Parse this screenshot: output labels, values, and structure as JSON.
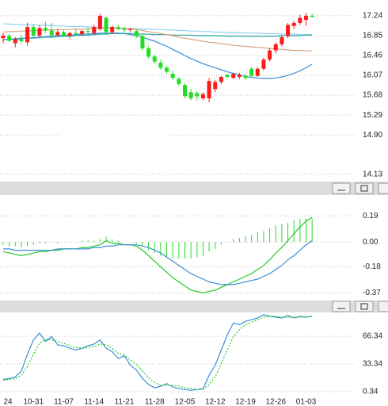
{
  "chart_data": [
    {
      "type": "candlestick",
      "open": [
        16.8,
        16.85,
        16.7,
        16.78,
        16.72,
        17.02,
        16.85,
        17.0,
        16.95,
        16.86,
        16.92,
        16.85,
        16.9,
        16.88,
        16.94,
        16.9,
        16.98,
        17.2,
        16.92,
        17.02,
        16.98,
        16.96,
        16.94,
        16.84,
        16.6,
        16.44,
        16.32,
        16.22,
        16.1,
        16.0,
        15.88,
        15.74,
        15.72,
        15.62,
        15.62,
        15.8,
        15.94,
        16.08,
        16.02,
        16.04,
        16.06,
        16.2,
        16.06,
        16.2,
        16.38,
        16.56,
        16.68,
        16.84,
        17.04,
        17.1,
        17.16,
        17.24
      ],
      "high": [
        16.9,
        16.88,
        16.82,
        16.86,
        17.1,
        17.08,
        17.05,
        17.12,
        17.1,
        16.98,
        16.96,
        16.93,
        16.98,
        16.96,
        17.0,
        17.06,
        17.28,
        17.22,
        17.05,
        17.06,
        17.02,
        17.0,
        16.98,
        16.88,
        16.64,
        16.48,
        16.38,
        16.26,
        16.16,
        16.04,
        15.92,
        15.8,
        15.76,
        15.74,
        16.02,
        15.98,
        16.06,
        16.1,
        16.12,
        16.12,
        16.1,
        16.24,
        16.24,
        16.42,
        16.6,
        16.72,
        16.86,
        17.1,
        17.14,
        17.26,
        17.3,
        17.28
      ],
      "low": [
        16.7,
        16.72,
        16.62,
        16.7,
        16.65,
        16.8,
        16.82,
        16.9,
        16.8,
        16.84,
        16.82,
        16.8,
        16.86,
        16.84,
        16.88,
        16.86,
        16.95,
        16.88,
        16.88,
        16.96,
        16.9,
        16.92,
        16.8,
        16.56,
        16.4,
        16.3,
        16.18,
        16.1,
        15.98,
        15.86,
        15.62,
        15.58,
        15.58,
        15.58,
        15.54,
        15.74,
        15.9,
        16.0,
        16.0,
        16.0,
        15.98,
        16.02,
        16.04,
        16.16,
        16.34,
        16.5,
        16.64,
        16.8,
        16.98,
        17.06,
        17.04,
        17.2
      ],
      "close": [
        16.85,
        16.75,
        16.78,
        16.74,
        17.02,
        16.85,
        17.0,
        16.95,
        16.86,
        16.92,
        16.85,
        16.9,
        16.88,
        16.94,
        16.92,
        17.02,
        17.24,
        16.92,
        17.02,
        16.98,
        16.96,
        16.98,
        16.84,
        16.6,
        16.44,
        16.34,
        16.22,
        16.14,
        16.02,
        15.9,
        15.66,
        15.62,
        15.66,
        15.7,
        15.96,
        15.94,
        16.04,
        16.04,
        16.1,
        16.08,
        16.02,
        16.06,
        16.2,
        16.38,
        16.56,
        16.68,
        16.82,
        17.06,
        17.1,
        17.2,
        17.24,
        17.22
      ],
      "up_color": "#ff1a1a",
      "down_color": "#22dd22",
      "series": [
        {
          "color": "#8fd0f5",
          "values": [
            17.08,
            17.08,
            17.07,
            17.07,
            17.06,
            17.06,
            17.06,
            17.05,
            17.05,
            17.04,
            17.04,
            17.03,
            17.03,
            17.03,
            17.02,
            17.02,
            17.01,
            17.01,
            17.01,
            17.0,
            17.0,
            16.99,
            16.99,
            16.98,
            16.98,
            16.97,
            16.97,
            16.96,
            16.96,
            16.95,
            16.95,
            16.94,
            16.94,
            16.93,
            16.93,
            16.92,
            16.92,
            16.91,
            16.91,
            16.91,
            16.9,
            16.9,
            16.9,
            16.89,
            16.89,
            16.89,
            16.88,
            16.88,
            16.88,
            16.87,
            16.87,
            16.87
          ]
        },
        {
          "color": "#2aa6a0",
          "values": [
            16.77,
            16.78,
            16.78,
            16.79,
            16.8,
            16.8,
            16.81,
            16.82,
            16.82,
            16.83,
            16.84,
            16.84,
            16.85,
            16.86,
            16.86,
            16.87,
            16.88,
            16.88,
            16.89,
            16.89,
            16.89,
            16.89,
            16.88,
            16.88,
            16.88,
            16.87,
            16.87,
            16.87,
            16.86,
            16.86,
            16.86,
            16.86,
            16.85,
            16.85,
            16.85,
            16.85,
            16.85,
            16.84,
            16.84,
            16.84,
            16.84,
            16.84,
            16.84,
            16.84,
            16.84,
            16.84,
            16.85,
            16.85,
            16.85,
            16.85,
            16.86,
            16.86
          ]
        },
        {
          "color": "#d9a47c",
          "values": [
            16.92,
            16.93,
            16.93,
            16.94,
            16.94,
            16.95,
            16.95,
            16.96,
            16.96,
            16.97,
            16.97,
            16.97,
            16.98,
            16.98,
            16.98,
            16.99,
            16.99,
            17.0,
            17.0,
            17.0,
            16.99,
            16.98,
            16.97,
            16.95,
            16.93,
            16.91,
            16.89,
            16.87,
            16.85,
            16.82,
            16.8,
            16.78,
            16.76,
            16.74,
            16.72,
            16.71,
            16.69,
            16.68,
            16.66,
            16.65,
            16.64,
            16.63,
            16.62,
            16.61,
            16.6,
            16.59,
            16.58,
            16.57,
            16.56,
            16.56,
            16.55,
            16.55
          ]
        },
        {
          "color": "#3a8fd6",
          "values": [
            16.77,
            16.78,
            16.79,
            16.8,
            16.8,
            16.81,
            16.82,
            16.83,
            16.84,
            16.85,
            16.86,
            16.86,
            16.87,
            16.88,
            16.88,
            16.89,
            16.9,
            16.9,
            16.9,
            16.9,
            16.89,
            16.87,
            16.85,
            16.82,
            16.78,
            16.74,
            16.69,
            16.64,
            16.58,
            16.52,
            16.46,
            16.4,
            16.35,
            16.3,
            16.26,
            16.22,
            16.18,
            16.14,
            16.11,
            16.08,
            16.05,
            16.03,
            16.02,
            16.01,
            16.01,
            16.02,
            16.04,
            16.07,
            16.11,
            16.16,
            16.22,
            16.29
          ]
        }
      ],
      "ylim": [
        14.0,
        17.55
      ],
      "yticks": [
        17.24,
        16.85,
        16.46,
        16.07,
        15.68,
        15.29,
        {
          "value": 14.9,
          "label": "14.90"
        },
        14.13
      ],
      "grid": true
    },
    {
      "type": "macd",
      "bars": {
        "color": "#22dd22",
        "values": [
          -0.02,
          -0.03,
          -0.03,
          -0.04,
          -0.03,
          -0.02,
          -0.01,
          -0.01,
          0,
          -0.01,
          0,
          0,
          0,
          0.01,
          0.01,
          0.01,
          0.02,
          0.04,
          0.02,
          0.01,
          0,
          0,
          -0.01,
          -0.03,
          -0.06,
          -0.08,
          -0.1,
          -0.11,
          -0.12,
          -0.12,
          -0.12,
          -0.12,
          -0.11,
          -0.1,
          -0.07,
          -0.05,
          -0.02,
          0,
          0.02,
          0.03,
          0.04,
          0.05,
          0.07,
          0.08,
          0.1,
          0.12,
          0.13,
          0.14,
          0.16,
          0.17,
          0.17,
          0.17
        ]
      },
      "series": [
        {
          "color": "#22cc22",
          "values": [
            -0.07,
            -0.08,
            -0.09,
            -0.1,
            -0.09,
            -0.08,
            -0.07,
            -0.07,
            -0.06,
            -0.06,
            -0.05,
            -0.05,
            -0.05,
            -0.04,
            -0.04,
            -0.03,
            -0.02,
            0.01,
            -0.01,
            -0.01,
            -0.02,
            -0.02,
            -0.03,
            -0.06,
            -0.1,
            -0.14,
            -0.18,
            -0.22,
            -0.26,
            -0.29,
            -0.32,
            -0.35,
            -0.36,
            -0.37,
            -0.36,
            -0.35,
            -0.33,
            -0.31,
            -0.29,
            -0.27,
            -0.25,
            -0.23,
            -0.2,
            -0.17,
            -0.13,
            -0.08,
            -0.04,
            0.01,
            0.06,
            0.11,
            0.15,
            0.18
          ]
        },
        {
          "color": "#3a8fd6",
          "values": [
            -0.05,
            -0.05,
            -0.06,
            -0.06,
            -0.06,
            -0.06,
            -0.06,
            -0.06,
            -0.06,
            -0.05,
            -0.05,
            -0.05,
            -0.05,
            -0.05,
            -0.05,
            -0.04,
            -0.04,
            -0.03,
            -0.03,
            -0.02,
            -0.02,
            -0.02,
            -0.02,
            -0.03,
            -0.04,
            -0.06,
            -0.08,
            -0.11,
            -0.14,
            -0.17,
            -0.2,
            -0.23,
            -0.25,
            -0.27,
            -0.29,
            -0.3,
            -0.31,
            -0.31,
            -0.31,
            -0.3,
            -0.29,
            -0.28,
            -0.27,
            -0.25,
            -0.23,
            -0.2,
            -0.17,
            -0.13,
            -0.1,
            -0.06,
            -0.02,
            0.01
          ]
        }
      ],
      "ylim": [
        -0.42,
        0.33
      ],
      "yticks": [
        0.19,
        {
          "value": 0,
          "label": "0.00"
        },
        -0.18,
        -0.37
      ],
      "grid": true
    },
    {
      "type": "line",
      "categories": [
        "24",
        null,
        null,
        null,
        null,
        "10-31",
        null,
        null,
        null,
        null,
        "11-07",
        null,
        null,
        null,
        null,
        "11-14",
        null,
        null,
        null,
        null,
        "11-21",
        null,
        null,
        null,
        null,
        "11-28",
        null,
        null,
        null,
        null,
        "12-05",
        null,
        null,
        null,
        null,
        "12-12",
        null,
        null,
        null,
        null,
        "12-19",
        null,
        null,
        null,
        null,
        "12-26",
        null,
        null,
        null,
        null,
        "01-03",
        null
      ],
      "series": [
        {
          "color": "#3a8fd6",
          "dashed": false,
          "values": [
            15,
            16,
            18,
            25,
            45,
            62,
            70,
            60,
            66,
            56,
            55,
            52,
            50,
            52,
            55,
            57,
            62,
            52,
            48,
            40,
            43,
            32,
            26,
            16,
            9,
            5,
            7,
            10,
            6,
            4,
            3,
            2,
            3,
            4,
            20,
            32,
            50,
            68,
            82,
            80,
            84,
            86,
            88,
            92,
            90,
            89,
            88,
            91,
            88,
            90,
            89,
            90
          ]
        },
        {
          "color": "#22cc22",
          "dashed": true,
          "values": [
            14,
            15,
            16,
            20,
            30,
            45,
            58,
            63,
            62,
            60,
            58,
            55,
            53,
            52,
            53,
            54,
            57,
            56,
            52,
            46,
            44,
            38,
            33,
            25,
            17,
            11,
            8,
            8,
            8,
            7,
            5,
            4,
            3,
            3,
            9,
            18,
            34,
            50,
            66,
            74,
            80,
            83,
            86,
            89,
            90,
            90,
            89,
            89,
            89,
            89,
            89,
            90
          ]
        }
      ],
      "ylim": [
        -3.4,
        93.7
      ],
      "yticks": [
        66.34,
        33.34,
        0.34
      ],
      "grid": true
    }
  ]
}
